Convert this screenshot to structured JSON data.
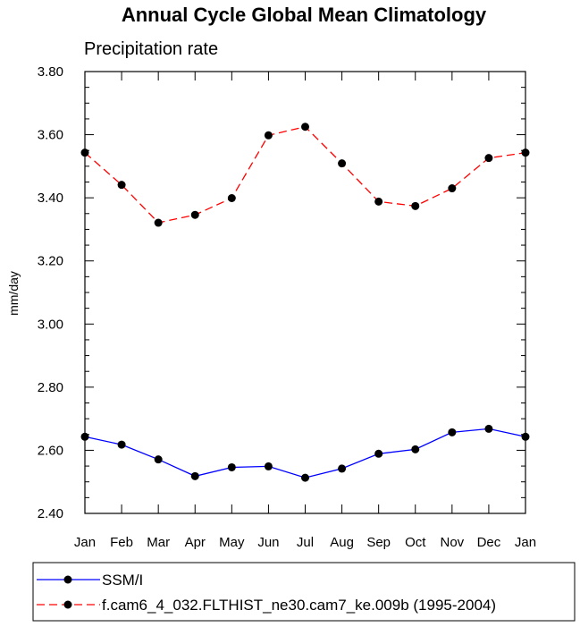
{
  "chart_data": {
    "type": "line",
    "title": "Annual Cycle Global Mean Climatology",
    "subtitle": "Precipitation rate",
    "xlabel": "",
    "ylabel": "mm/day",
    "categories": [
      "Jan",
      "Feb",
      "Mar",
      "Apr",
      "May",
      "Jun",
      "Jul",
      "Aug",
      "Sep",
      "Oct",
      "Nov",
      "Dec",
      "Jan"
    ],
    "ylim": [
      2.4,
      3.8
    ],
    "yticks": [
      "2.40",
      "2.60",
      "2.80",
      "3.00",
      "3.20",
      "3.40",
      "3.60",
      "3.80"
    ],
    "grid": false,
    "legend_position": "bottom",
    "series": [
      {
        "name": "SSM/I",
        "color": "#0000ff",
        "dash": "solid",
        "values": [
          2.643,
          2.618,
          2.571,
          2.518,
          2.546,
          2.549,
          2.513,
          2.542,
          2.589,
          2.603,
          2.657,
          2.668,
          2.643
        ]
      },
      {
        "name": "f.cam6_4_032.FLTHIST_ne30.cam7_ke.009b (1995-2004)",
        "color": "#ff0000",
        "dash": "dashed",
        "values": [
          3.543,
          3.441,
          3.321,
          3.346,
          3.399,
          3.598,
          3.625,
          3.509,
          3.388,
          3.374,
          3.43,
          3.526,
          3.543
        ]
      }
    ]
  }
}
